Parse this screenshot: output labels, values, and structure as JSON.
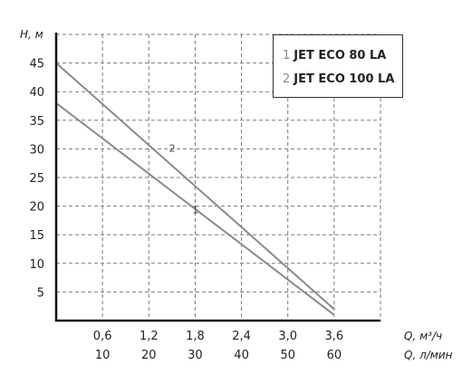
{
  "chart_data": {
    "type": "line",
    "ylabel": "H, м",
    "xlabel_primary": "Q, м³/ч",
    "xlabel_secondary": "Q, л/мин",
    "x_ticks_primary": [
      "0,6",
      "1,2",
      "1,8",
      "2,4",
      "3,0",
      "3,6"
    ],
    "x_ticks_secondary": [
      "10",
      "20",
      "30",
      "40",
      "50",
      "60"
    ],
    "y_ticks": [
      "5",
      "10",
      "15",
      "20",
      "25",
      "30",
      "35",
      "40",
      "45"
    ],
    "xlim": [
      0,
      4.2
    ],
    "ylim": [
      0,
      50
    ],
    "grid": true,
    "legend_position": "top-right",
    "series": [
      {
        "name": "JET ECO 80 LA",
        "number": "1",
        "x": [
          0,
          3.6
        ],
        "y": [
          38,
          1
        ]
      },
      {
        "name": "JET ECO 100 LA",
        "number": "2",
        "x": [
          0,
          3.6
        ],
        "y": [
          45,
          2
        ]
      }
    ],
    "colors": {
      "series_line": "#8a8a8a",
      "grid": "#7a7a7a",
      "axis": "#111111"
    }
  }
}
